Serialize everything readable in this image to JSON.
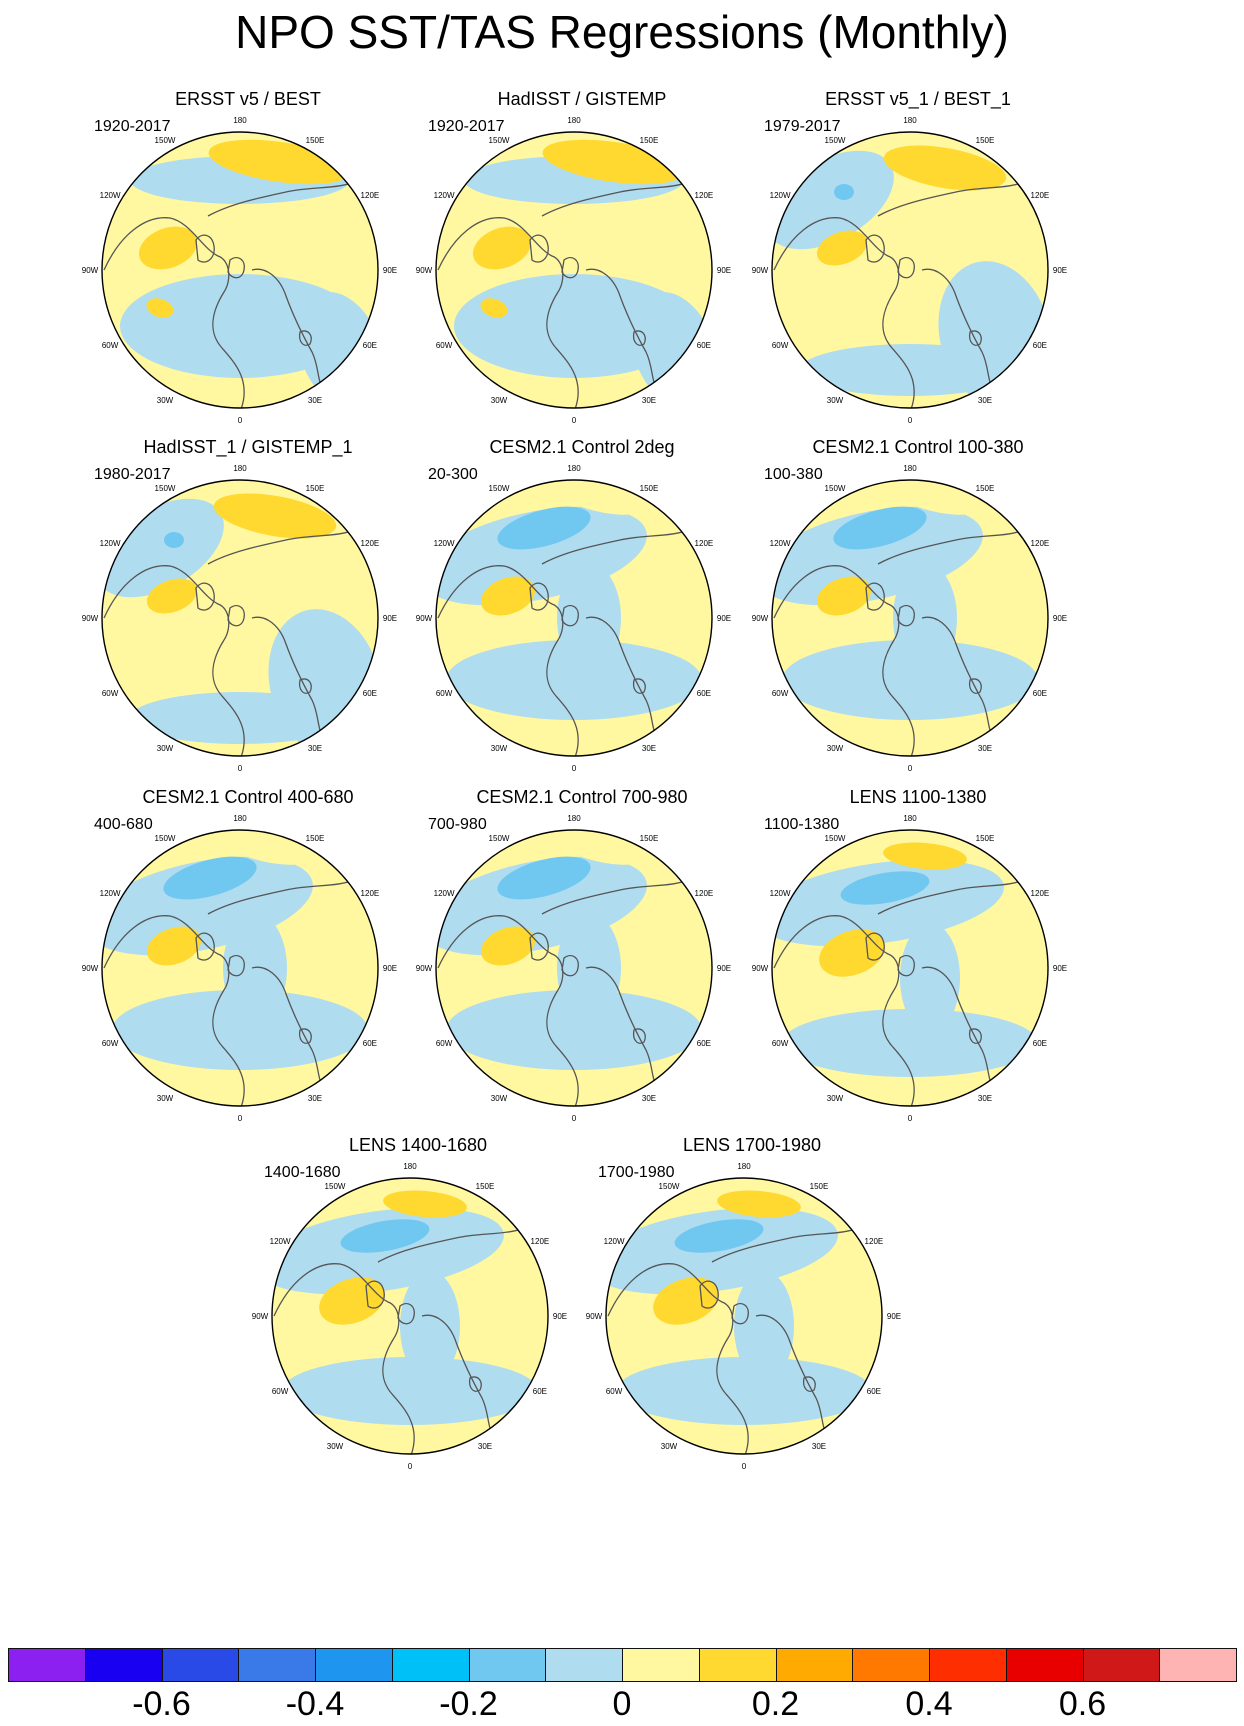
{
  "title": "NPO SST/TAS Regressions (Monthly)",
  "longitude_labels": [
    "180",
    "150E",
    "120E",
    "90E",
    "60E",
    "30E",
    "0",
    "30W",
    "60W",
    "90W",
    "120W",
    "150W"
  ],
  "panels": [
    {
      "title": "ERSST v5 / BEST",
      "period": "1920-2017",
      "variant": "obs"
    },
    {
      "title": "HadISST / GISTEMP",
      "period": "1920-2017",
      "variant": "obs"
    },
    {
      "title": "ERSST v5_1 / BEST_1",
      "period": "1979-2017",
      "variant": "obs-recent"
    },
    {
      "title": "HadISST_1 / GISTEMP_1",
      "period": "1980-2017",
      "variant": "obs-recent"
    },
    {
      "title": "CESM2.1 Control 2deg",
      "period": "20-300",
      "variant": "model"
    },
    {
      "title": "CESM2.1 Control 100-380",
      "period": "100-380",
      "variant": "model"
    },
    {
      "title": "CESM2.1 Control 400-680",
      "period": "400-680",
      "variant": "model"
    },
    {
      "title": "CESM2.1 Control 700-980",
      "period": "700-980",
      "variant": "model"
    },
    {
      "title": "LENS 1100-1380",
      "period": "1100-1380",
      "variant": "lens"
    },
    {
      "title": "LENS 1400-1680",
      "period": "1400-1680",
      "variant": "lens"
    },
    {
      "title": "LENS 1700-1980",
      "period": "1700-1980",
      "variant": "lens"
    }
  ],
  "colorbar": {
    "colors": [
      "#8b20f0",
      "#1a00f0",
      "#2a4ae8",
      "#3a7ae8",
      "#1e96f0",
      "#00c0f8",
      "#70c8f0",
      "#b0dcf0",
      "#fff8a0",
      "#ffd830",
      "#ffaa00",
      "#ff7800",
      "#ff2e00",
      "#e80000",
      "#d01818",
      "#ffb4b4"
    ],
    "labels": [
      "-0.6",
      "-0.4",
      "-0.2",
      "0",
      "0.2",
      "0.4",
      "0.6"
    ]
  },
  "palette": {
    "land_outline": "#555555",
    "map_border": "#000000"
  }
}
